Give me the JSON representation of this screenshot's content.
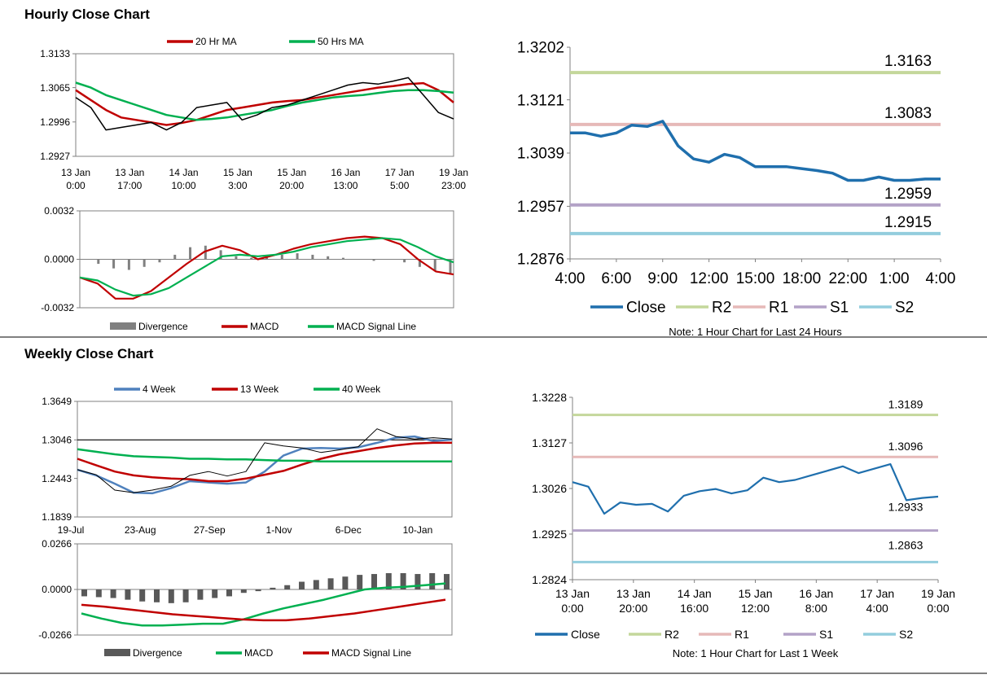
{
  "hourly": {
    "title": "Hourly Close Chart",
    "price_chart": {
      "type": "line",
      "legend": [
        "20 Hr MA",
        "50 Hrs MA"
      ],
      "yticks": [
        "1.3133",
        "1.3065",
        "1.2996",
        "1.2927"
      ],
      "ylim": [
        1.2927,
        1.3133
      ],
      "xticks": [
        [
          "13 Jan",
          "0:00"
        ],
        [
          "13 Jan",
          "17:00"
        ],
        [
          "14 Jan",
          "10:00"
        ],
        [
          "15 Jan",
          "3:00"
        ],
        [
          "15 Jan",
          "20:00"
        ],
        [
          "16 Jan",
          "13:00"
        ],
        [
          "17 Jan",
          "5:00"
        ],
        [
          "19 Jan",
          "23:00"
        ]
      ],
      "series": [
        {
          "name": "20 Hr MA",
          "color": "#c00000",
          "values": [
            1.306,
            1.304,
            1.302,
            1.3005,
            1.3,
            1.2995,
            1.299,
            1.2994,
            1.3,
            1.301,
            1.302,
            1.3025,
            1.303,
            1.3035,
            1.3038,
            1.304,
            1.3045,
            1.305,
            1.3055,
            1.306,
            1.3065,
            1.3068,
            1.3072,
            1.3074,
            1.306,
            1.3035
          ]
        },
        {
          "name": "50 Hrs MA",
          "color": "#00b050",
          "values": [
            1.3075,
            1.3065,
            1.305,
            1.304,
            1.303,
            1.302,
            1.301,
            1.3005,
            1.3,
            1.3002,
            1.3005,
            1.301,
            1.3015,
            1.302,
            1.3028,
            1.3035,
            1.304,
            1.3045,
            1.3048,
            1.305,
            1.3054,
            1.3058,
            1.306,
            1.306,
            1.3058,
            1.3055
          ]
        },
        {
          "name": "Price",
          "color": "#000000",
          "values": [
            1.3045,
            1.3025,
            1.298,
            1.2985,
            1.299,
            1.2995,
            1.298,
            1.2995,
            1.3025,
            1.303,
            1.3035,
            1.3,
            1.301,
            1.3025,
            1.303,
            1.304,
            1.305,
            1.306,
            1.307,
            1.3075,
            1.3072,
            1.3078,
            1.3085,
            1.305,
            1.3015,
            1.3002
          ]
        }
      ]
    },
    "macd_chart": {
      "type": "line",
      "legend": [
        "Divergence",
        "MACD",
        "MACD Signal Line"
      ],
      "yticks": [
        "0.0032",
        "0.0000",
        "-0.0032"
      ],
      "ylim": [
        -0.0032,
        0.0032
      ],
      "series": [
        {
          "name": "Divergence",
          "color": "#808080",
          "values": [
            0.0,
            -0.0003,
            -0.0006,
            -0.0007,
            -0.0005,
            -0.0002,
            0.0003,
            0.0008,
            0.0009,
            0.0006,
            0.0002,
            0.0001,
            0.0002,
            0.0003,
            0.0004,
            0.0003,
            0.0002,
            0.0001,
            0.0,
            -0.0001,
            0.0,
            -0.0002,
            -0.0005,
            -0.0008,
            -0.001
          ]
        },
        {
          "name": "MACD",
          "color": "#c00000",
          "values": [
            -0.0012,
            -0.0016,
            -0.0026,
            -0.0026,
            -0.0021,
            -0.0012,
            -0.0003,
            0.0005,
            0.0009,
            0.0006,
            0.0,
            0.0003,
            0.0007,
            0.001,
            0.0012,
            0.0014,
            0.0015,
            0.0014,
            0.001,
            0.0,
            -0.0008,
            -0.001
          ]
        },
        {
          "name": "MACD Signal Line",
          "color": "#00b050",
          "values": [
            -0.0012,
            -0.0014,
            -0.002,
            -0.0024,
            -0.0023,
            -0.0019,
            -0.0012,
            -0.0005,
            0.0002,
            0.0003,
            0.0002,
            0.0003,
            0.0005,
            0.0008,
            0.001,
            0.0012,
            0.0013,
            0.0014,
            0.0013,
            0.0008,
            0.0002,
            -0.0002
          ]
        }
      ]
    },
    "day_chart": {
      "type": "line",
      "yticks": [
        "1.3202",
        "1.3121",
        "1.3039",
        "1.2957",
        "1.2876"
      ],
      "ylim": [
        1.2876,
        1.3202
      ],
      "xticks": [
        "4:00",
        "6:00",
        "9:00",
        "12:00",
        "15:00",
        "18:00",
        "22:00",
        "1:00",
        "4:00"
      ],
      "levels": [
        {
          "name": "R2",
          "value": "1.3163",
          "color": "#c4d79b"
        },
        {
          "name": "R1",
          "value": "1.3083",
          "color": "#e6b9b8"
        },
        {
          "name": "S1",
          "value": "1.2959",
          "color": "#b3a2c7"
        },
        {
          "name": "S2",
          "value": "1.2915",
          "color": "#93cddd"
        }
      ],
      "close": {
        "name": "Close",
        "color": "#1f6fad",
        "values": [
          1.307,
          1.307,
          1.3065,
          1.307,
          1.3082,
          1.308,
          1.3088,
          1.305,
          1.303,
          1.3025,
          1.3037,
          1.3032,
          1.3018,
          1.3018,
          1.3018,
          1.3015,
          1.3012,
          1.3008,
          1.2997,
          1.2997,
          1.3002,
          1.2997,
          1.2997,
          1.2999,
          1.2999
        ]
      },
      "legend": [
        "Close",
        "R2",
        "R1",
        "S1",
        "S2"
      ],
      "note": "Note: 1 Hour Chart for Last 24 Hours"
    }
  },
  "weekly": {
    "title": "Weekly Close Chart",
    "price_chart": {
      "type": "line",
      "legend": [
        "4 Week",
        "13 Week",
        "40 Week"
      ],
      "yticks": [
        "1.3649",
        "1.3046",
        "1.2443",
        "1.1839"
      ],
      "ylim": [
        1.1839,
        1.3649
      ],
      "xticks": [
        "19-Jul",
        "23-Aug",
        "27-Sep",
        "1-Nov",
        "6-Dec",
        "10-Jan"
      ],
      "series": [
        {
          "name": "4 Week",
          "color": "#4f81bd",
          "values": [
            1.258,
            1.249,
            1.236,
            1.222,
            1.221,
            1.229,
            1.24,
            1.238,
            1.236,
            1.238,
            1.255,
            1.28,
            1.291,
            1.292,
            1.291,
            1.293,
            1.3,
            1.308,
            1.31,
            1.303,
            1.305
          ]
        },
        {
          "name": "13 Week",
          "color": "#c00000",
          "values": [
            1.275,
            1.265,
            1.255,
            1.249,
            1.246,
            1.244,
            1.243,
            1.24,
            1.24,
            1.244,
            1.25,
            1.256,
            1.266,
            1.275,
            1.282,
            1.287,
            1.292,
            1.296,
            1.299,
            1.3,
            1.3
          ]
        },
        {
          "name": "40 Week",
          "color": "#00b050",
          "values": [
            1.29,
            1.286,
            1.282,
            1.279,
            1.278,
            1.277,
            1.275,
            1.275,
            1.274,
            1.274,
            1.273,
            1.272,
            1.272,
            1.271,
            1.271,
            1.271,
            1.271,
            1.271,
            1.271,
            1.271,
            1.271
          ]
        },
        {
          "name": "Price",
          "color": "#000000",
          "values": [
            1.258,
            1.25,
            1.226,
            1.222,
            1.226,
            1.232,
            1.249,
            1.255,
            1.248,
            1.255,
            1.3,
            1.295,
            1.292,
            1.285,
            1.289,
            1.294,
            1.322,
            1.31,
            1.306,
            1.308,
            1.306
          ]
        }
      ]
    },
    "macd_chart": {
      "type": "bar",
      "legend": [
        "Divergence",
        "MACD",
        "MACD Signal Line"
      ],
      "yticks": [
        "0.0266",
        "0.0000",
        "-0.0266"
      ],
      "ylim": [
        -0.0266,
        0.0266
      ],
      "series": [
        {
          "name": "Divergence",
          "color": "#595959",
          "values": [
            -0.004,
            -0.0045,
            -0.005,
            -0.006,
            -0.007,
            -0.0075,
            -0.008,
            -0.0075,
            -0.006,
            -0.005,
            -0.004,
            -0.002,
            -0.001,
            0.001,
            0.0025,
            0.0045,
            0.0055,
            0.0065,
            0.0075,
            0.0085,
            0.009,
            0.0095,
            0.0095,
            0.009,
            0.0095,
            0.009
          ]
        },
        {
          "name": "MACD",
          "color": "#00b050",
          "values": [
            -0.014,
            -0.017,
            -0.0195,
            -0.021,
            -0.021,
            -0.0205,
            -0.02,
            -0.02,
            -0.0175,
            -0.014,
            -0.011,
            -0.0085,
            -0.006,
            -0.003,
            0.0,
            0.001,
            0.0015,
            0.0025,
            0.0035
          ]
        },
        {
          "name": "MACD Signal Line",
          "color": "#c00000",
          "values": [
            -0.009,
            -0.01,
            -0.0115,
            -0.013,
            -0.0145,
            -0.0155,
            -0.0165,
            -0.0175,
            -0.018,
            -0.018,
            -0.017,
            -0.0155,
            -0.014,
            -0.012,
            -0.01,
            -0.008,
            -0.006
          ]
        }
      ]
    },
    "week_chart": {
      "type": "line",
      "yticks": [
        "1.3228",
        "1.3127",
        "1.3026",
        "1.2925",
        "1.2824"
      ],
      "ylim": [
        1.2824,
        1.3228
      ],
      "xticks": [
        [
          "13 Jan",
          "0:00"
        ],
        [
          "13 Jan",
          "20:00"
        ],
        [
          "14 Jan",
          "16:00"
        ],
        [
          "15 Jan",
          "12:00"
        ],
        [
          "16 Jan",
          "8:00"
        ],
        [
          "17 Jan",
          "4:00"
        ],
        [
          "19 Jan",
          "0:00"
        ]
      ],
      "levels": [
        {
          "name": "R2",
          "value": "1.3189",
          "color": "#c4d79b"
        },
        {
          "name": "R1",
          "value": "1.3096",
          "color": "#e6b9b8"
        },
        {
          "name": "S1",
          "value": "1.2933",
          "color": "#b3a2c7"
        },
        {
          "name": "S2",
          "value": "1.2863",
          "color": "#93cddd"
        }
      ],
      "close": {
        "name": "Close",
        "color": "#1f6fad",
        "values": [
          1.304,
          1.303,
          1.297,
          1.2995,
          1.299,
          1.2992,
          1.2975,
          1.301,
          1.302,
          1.3025,
          1.3015,
          1.3022,
          1.305,
          1.304,
          1.3045,
          1.3055,
          1.3065,
          1.3075,
          1.306,
          1.307,
          1.308,
          1.3,
          1.3005,
          1.3008
        ]
      },
      "legend": [
        "Close",
        "R2",
        "R1",
        "S1",
        "S2"
      ],
      "note": "Note: 1 Hour Chart for Last 1 Week"
    }
  }
}
